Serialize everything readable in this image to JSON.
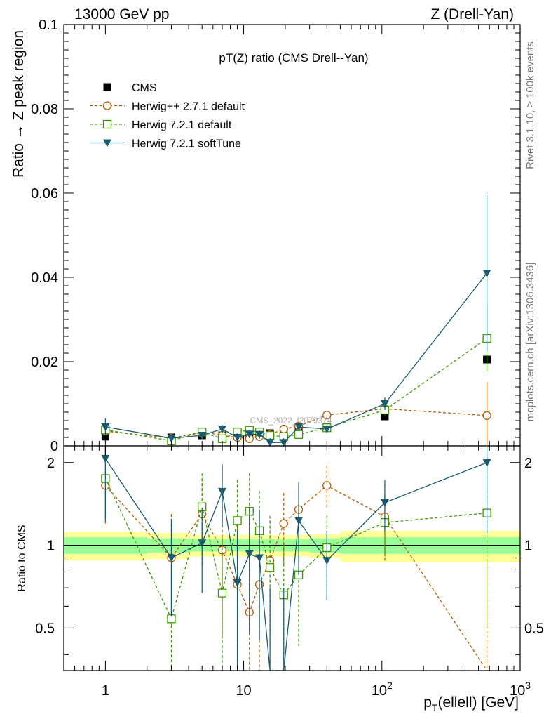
{
  "header": {
    "left": "13000 GeV pp",
    "right": "Z (Drell-Yan)"
  },
  "side": {
    "rivet": "Rivet 3.1.10, ≥ 100k events",
    "mcplots": "mcplots.cern.ch [arXiv:1306.3436]"
  },
  "chart_data": {
    "type": "line",
    "title": "pT(Z) ratio (CMS Drell--Yan)",
    "xlabel": "p_T(ellell) [GeV]",
    "ylabel": "Ratio → Z peak region",
    "ratio_ylabel": "Ratio to CMS",
    "watermark": "CMS_2022_I2079374",
    "xscale": "log",
    "xlim": [
      0.5,
      1000
    ],
    "ylim": [
      0,
      0.1
    ],
    "ratio_ylim": [
      0.35,
      2.3
    ],
    "x_ticks": [
      "1",
      "10",
      "10^2",
      "10^3"
    ],
    "y_ticks": [
      "0",
      "0.02",
      "0.04",
      "0.06",
      "0.08",
      "0.1"
    ],
    "ratio_y_ticks": [
      "0.5",
      "1",
      "2"
    ],
    "legend_position": "top-left",
    "x": [
      1,
      3,
      5,
      7,
      9,
      11,
      13,
      15.5,
      19.5,
      25,
      40,
      105,
      575
    ],
    "series": [
      {
        "name": "CMS",
        "color": "#000000",
        "marker": "square",
        "values": [
          0.0022,
          0.002,
          0.0025,
          0.0025,
          0.0028,
          0.003,
          0.003,
          0.003,
          0.0033,
          0.0035,
          0.0045,
          0.007,
          0.0205
        ],
        "errors": [
          0.0006,
          0.0003,
          0.0003,
          0.0003,
          0.0003,
          0.0003,
          0.0003,
          0.0003,
          0.0003,
          0.0004,
          0.0005,
          0.0009,
          0.0012
        ],
        "ratio": []
      },
      {
        "name": "Herwig++ 2.7.1 default",
        "color": "#b85c00",
        "marker": "circle",
        "values": [
          0.0035,
          0.0018,
          0.0033,
          0.0025,
          0.002,
          0.0017,
          0.0022,
          0.0027,
          0.004,
          0.0047,
          0.0073,
          0.0088,
          0.0072
        ],
        "errors": [
          0.001,
          0.0005,
          0.0006,
          0.0007,
          0.0007,
          0.0007,
          0.0007,
          0.0008,
          0.0009,
          0.0009,
          0.001,
          0.001,
          0.008
        ],
        "ratio": [
          1.65,
          0.9,
          1.3,
          0.96,
          0.72,
          0.57,
          0.72,
          0.88,
          1.2,
          1.35,
          1.65,
          1.27,
          0.32
        ],
        "ratio_errors": [
          0.45,
          0.4,
          0.45,
          0.5,
          0.5,
          0.4,
          0.4,
          0.4,
          0.35,
          0.35,
          0.3,
          0.4,
          0.55
        ]
      },
      {
        "name": "Herwig 7.2.1 default",
        "color": "#3a9a00",
        "marker": "open-square",
        "values": [
          0.0038,
          0.0012,
          0.0033,
          0.0017,
          0.0033,
          0.0037,
          0.0033,
          0.0025,
          0.0022,
          0.0027,
          0.0043,
          0.0085,
          0.0255
        ],
        "errors": [
          0.001,
          0.0005,
          0.0007,
          0.0007,
          0.0008,
          0.0008,
          0.0008,
          0.0008,
          0.0008,
          0.0008,
          0.0009,
          0.0012,
          0.008
        ],
        "ratio": [
          1.75,
          0.54,
          1.38,
          0.67,
          1.23,
          1.33,
          1.13,
          0.83,
          0.66,
          0.78,
          0.98,
          1.21,
          1.31
        ],
        "ratio_errors": [
          0.5,
          0.3,
          0.45,
          0.4,
          0.5,
          0.5,
          0.45,
          0.4,
          0.35,
          0.35,
          0.3,
          0.3,
          0.8
        ]
      },
      {
        "name": "Herwig 7.2.1 softTune",
        "color": "#1a5b70",
        "marker": "triangle-down",
        "values": [
          0.0045,
          0.0018,
          0.0025,
          0.004,
          0.002,
          0.0028,
          0.0027,
          0.0008,
          0.0008,
          0.0045,
          0.004,
          0.01,
          0.041
        ],
        "errors": [
          0.002,
          0.0006,
          0.0008,
          0.001,
          0.001,
          0.001,
          0.001,
          0.001,
          0.001,
          0.001,
          0.0009,
          0.0015,
          0.0185
        ],
        "ratio": [
          2.07,
          0.9,
          1.02,
          1.57,
          0.73,
          0.93,
          0.9,
          0.2,
          0.2,
          1.23,
          0.88,
          1.43,
          2.0
        ],
        "ratio_errors": [
          0.85,
          0.35,
          0.35,
          0.4,
          0.4,
          0.45,
          0.45,
          0.5,
          0.5,
          0.45,
          0.25,
          0.3,
          0.9
        ]
      }
    ],
    "band_edges": [
      0.5,
      2,
      4,
      6,
      8,
      10,
      12,
      14,
      17,
      22,
      30,
      50,
      160,
      1000
    ],
    "band_yellow": [
      0.12,
      0.11,
      0.09,
      0.09,
      0.09,
      0.09,
      0.09,
      0.09,
      0.09,
      0.09,
      0.1,
      0.13,
      0.13
    ],
    "band_green": [
      0.07,
      0.06,
      0.05,
      0.05,
      0.05,
      0.05,
      0.05,
      0.05,
      0.05,
      0.05,
      0.06,
      0.07,
      0.07
    ],
    "band_colors": {
      "yellow": "#ffff99",
      "green": "#99ff99"
    }
  }
}
